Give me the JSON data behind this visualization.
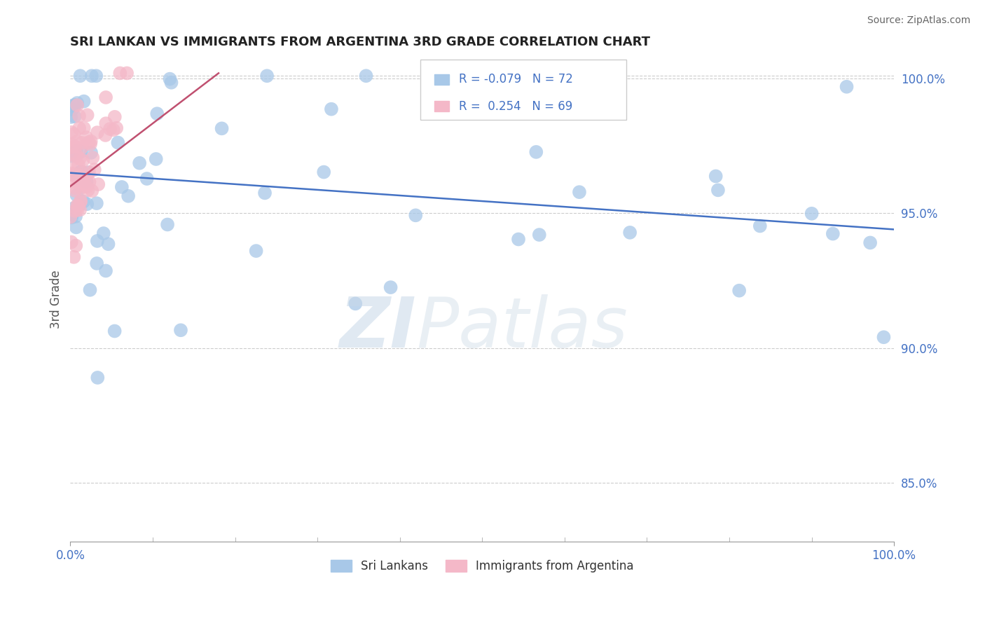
{
  "title": "SRI LANKAN VS IMMIGRANTS FROM ARGENTINA 3RD GRADE CORRELATION CHART",
  "source": "Source: ZipAtlas.com",
  "ylabel": "3rd Grade",
  "xlim": [
    0.0,
    1.0
  ],
  "ylim": [
    0.828,
    1.008
  ],
  "yticks": [
    0.85,
    0.9,
    0.95,
    1.0
  ],
  "ytick_labels": [
    "85.0%",
    "90.0%",
    "95.0%",
    "100.0%"
  ],
  "xtick_labels": [
    "0.0%",
    "100.0%"
  ],
  "legend_r_blue": "-0.079",
  "legend_n_blue": "72",
  "legend_r_pink": "0.254",
  "legend_n_pink": "69",
  "blue_color": "#a8c8e8",
  "pink_color": "#f4b8c8",
  "blue_line_color": "#4472c4",
  "pink_line_color": "#c05070",
  "background_color": "#ffffff",
  "watermark_zi": "ZI",
  "watermark_patlas": "Patlas",
  "grid_color": "#cccccc"
}
